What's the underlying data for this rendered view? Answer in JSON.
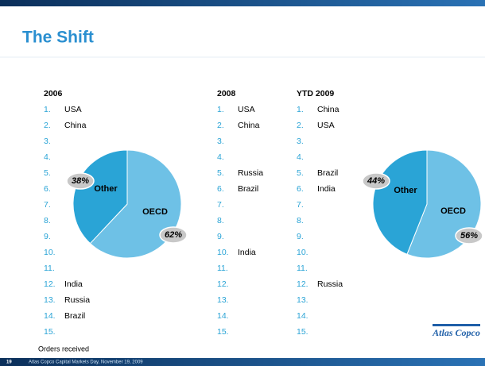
{
  "title": "The Shift",
  "lists": [
    {
      "heading": "2006",
      "items": [
        {
          "rank": "1.",
          "name": "USA"
        },
        {
          "rank": "2.",
          "name": "China"
        },
        {
          "rank": "3."
        },
        {
          "rank": "4."
        },
        {
          "rank": "5."
        },
        {
          "rank": "6."
        },
        {
          "rank": "7."
        },
        {
          "rank": "8."
        },
        {
          "rank": "9."
        },
        {
          "rank": "10."
        },
        {
          "rank": "11."
        },
        {
          "rank": "12.",
          "name": "India"
        },
        {
          "rank": "13.",
          "name": "Russia"
        },
        {
          "rank": "14.",
          "name": "Brazil"
        },
        {
          "rank": "15."
        }
      ]
    },
    {
      "heading": "2008",
      "items": [
        {
          "rank": "1.",
          "name": "USA"
        },
        {
          "rank": "2.",
          "name": "China"
        },
        {
          "rank": "3."
        },
        {
          "rank": "4."
        },
        {
          "rank": "5.",
          "name": "Russia"
        },
        {
          "rank": "6.",
          "name": "Brazil"
        },
        {
          "rank": "7."
        },
        {
          "rank": "8."
        },
        {
          "rank": "9."
        },
        {
          "rank": "10.",
          "name": "India"
        },
        {
          "rank": "11."
        },
        {
          "rank": "12."
        },
        {
          "rank": "13."
        },
        {
          "rank": "14."
        },
        {
          "rank": "15."
        }
      ]
    },
    {
      "heading": "YTD 2009",
      "items": [
        {
          "rank": "1.",
          "name": "China"
        },
        {
          "rank": "2.",
          "name": "USA"
        },
        {
          "rank": "3."
        },
        {
          "rank": "4."
        },
        {
          "rank": "5.",
          "name": "Brazil"
        },
        {
          "rank": "6.",
          "name": "India"
        },
        {
          "rank": "7."
        },
        {
          "rank": "8."
        },
        {
          "rank": "9."
        },
        {
          "rank": "10."
        },
        {
          "rank": "11."
        },
        {
          "rank": "12.",
          "name": "Russia"
        },
        {
          "rank": "13."
        },
        {
          "rank": "14."
        },
        {
          "rank": "15."
        }
      ]
    }
  ],
  "chart_data": [
    {
      "type": "pie",
      "categories": [
        "OECD",
        "Other"
      ],
      "values": [
        62,
        38
      ],
      "value_labels": [
        "62%",
        "38%"
      ],
      "colors": [
        "#6ec1e6",
        "#2aa4d6"
      ]
    },
    {
      "type": "pie",
      "categories": [
        "OECD",
        "Other"
      ],
      "values": [
        56,
        44
      ],
      "value_labels": [
        "56%",
        "44%"
      ],
      "colors": [
        "#6ec1e6",
        "#2aa4d6"
      ]
    }
  ],
  "note": "Orders received",
  "footer": {
    "page": "19",
    "text": "Atlas Copco Capital Markets Day, November 19, 2009"
  },
  "logo": "Atlas Copco"
}
